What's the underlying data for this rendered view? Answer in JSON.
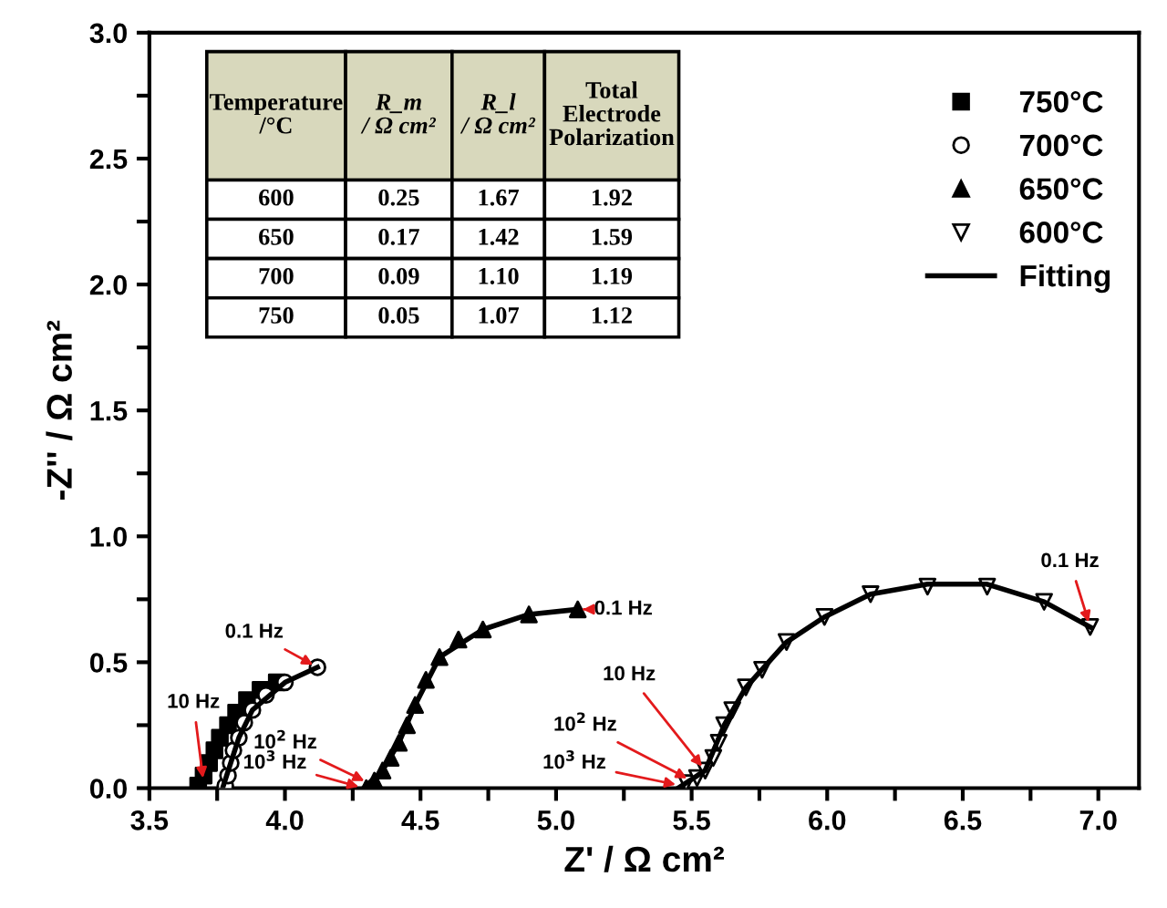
{
  "chart_data": {
    "type": "scatter",
    "xlabel": "Z' / Ω cm²",
    "ylabel": "-Z'' / Ω cm²",
    "xlim": [
      3.5,
      7.15
    ],
    "ylim": [
      0,
      3.0
    ],
    "xticks": [
      3.5,
      {
        "value": 3.75,
        "label": null
      },
      {
        "value": 4,
        "label": "4.0"
      },
      {
        "value": 4.25,
        "label": null
      },
      4.5,
      {
        "value": 4.75,
        "label": null
      },
      {
        "value": 5,
        "label": "5.0"
      },
      {
        "value": 5.25,
        "label": null
      },
      5.5,
      {
        "value": 5.75,
        "label": null
      },
      {
        "value": 6,
        "label": "6.0"
      },
      {
        "value": 6.25,
        "label": null
      },
      6.5,
      {
        "value": 6.75,
        "label": null
      },
      {
        "value": 7,
        "label": "7.0"
      }
    ],
    "yticks": [
      {
        "value": 0,
        "label": "0.0"
      },
      {
        "value": 0.25,
        "label": null
      },
      0.5,
      {
        "value": 0.75,
        "label": null
      },
      {
        "value": 1,
        "label": "1.0"
      },
      {
        "value": 1.25,
        "label": null
      },
      1.5,
      {
        "value": 1.75,
        "label": null
      },
      {
        "value": 2,
        "label": "2.0"
      },
      {
        "value": 2.25,
        "label": null
      },
      2.5,
      {
        "value": 2.75,
        "label": null
      },
      {
        "value": 3,
        "label": "3.0"
      }
    ],
    "grid": false,
    "legend": "top right",
    "series": [
      {
        "name": "750°C",
        "marker": "square",
        "color": "#000000",
        "x": [
          3.68,
          3.7,
          3.72,
          3.74,
          3.76,
          3.79,
          3.82,
          3.86,
          3.91,
          3.97
        ],
        "values": [
          0.01,
          0.05,
          0.1,
          0.15,
          0.2,
          0.25,
          0.3,
          0.35,
          0.39,
          0.42
        ]
      },
      {
        "name": "700°C",
        "marker": "circle_open",
        "color": "#000000",
        "x": [
          3.78,
          3.79,
          3.8,
          3.81,
          3.83,
          3.85,
          3.88,
          3.93,
          4.0,
          4.12
        ],
        "values": [
          0.01,
          0.05,
          0.1,
          0.15,
          0.2,
          0.26,
          0.31,
          0.37,
          0.42,
          0.48
        ]
      },
      {
        "name": "650°C",
        "marker": "triangle",
        "color": "#000000",
        "x": [
          4.3,
          4.33,
          4.36,
          4.39,
          4.42,
          4.45,
          4.48,
          4.52,
          4.57,
          4.64,
          4.73,
          4.9,
          5.08
        ],
        "values": [
          0.0,
          0.03,
          0.07,
          0.12,
          0.18,
          0.25,
          0.33,
          0.43,
          0.52,
          0.59,
          0.63,
          0.69,
          0.71
        ]
      },
      {
        "name": "600°C",
        "marker": "triangle_down_open",
        "color": "#000000",
        "x": [
          5.48,
          5.52,
          5.55,
          5.58,
          5.6,
          5.62,
          5.65,
          5.7,
          5.76,
          5.85,
          5.99,
          6.16,
          6.37,
          6.59,
          6.8,
          6.97
        ],
        "values": [
          0.02,
          0.04,
          0.07,
          0.12,
          0.18,
          0.25,
          0.31,
          0.4,
          0.47,
          0.58,
          0.68,
          0.77,
          0.8,
          0.8,
          0.74,
          0.64
        ]
      },
      {
        "name": "Fitting",
        "type": "line",
        "color": "#000000",
        "x": [
          5.45,
          5.55,
          5.62,
          5.7,
          5.85,
          5.99,
          6.16,
          6.37,
          6.59,
          6.8,
          6.97
        ],
        "values": [
          0.0,
          0.07,
          0.25,
          0.4,
          0.58,
          0.68,
          0.77,
          0.81,
          0.81,
          0.74,
          0.64
        ]
      },
      {
        "type": "line",
        "color": "#000000",
        "x": [
          3.77,
          3.8,
          3.83,
          3.88,
          4.0,
          4.12
        ],
        "values": [
          0.0,
          0.1,
          0.2,
          0.31,
          0.42,
          0.48
        ]
      },
      {
        "type": "line",
        "color": "#000000",
        "x": [
          4.29,
          4.36,
          4.42,
          4.48,
          4.57,
          4.73,
          4.9,
          5.08
        ],
        "values": [
          0.0,
          0.07,
          0.18,
          0.33,
          0.52,
          0.63,
          0.69,
          0.71
        ]
      }
    ],
    "annotations": [
      "Temperature\n/°C",
      "R_m\n/ Ω cm²",
      "R_l\n/ Ω cm²",
      "Total\nElectrode\nPolarization",
      "600",
      "0.25",
      "1.67",
      "1.92",
      "650",
      "0.17",
      "1.42",
      "1.59",
      "700",
      "0.09",
      "1.10",
      "1.19",
      "750",
      "0.05",
      "1.07",
      "1.12",
      {
        "text": "0.1 Hz",
        "x": 4.12,
        "y": 0.48
      },
      {
        "text": "10 Hz",
        "x": 3.7,
        "y": 0.02
      },
      {
        "text": "10$^{2}$ Hz",
        "x": 4.31,
        "y": 0.02
      },
      {
        "text": "10$^{3}$ Hz",
        "x": 4.29,
        "y": 0.0
      },
      {
        "text": "0.1 Hz",
        "x": 5.08,
        "y": 0.71
      },
      {
        "text": "10 Hz",
        "x": 5.55,
        "y": 0.07
      },
      {
        "text": "10$^{2}$ Hz",
        "x": 5.5,
        "y": 0.03
      },
      {
        "text": "10$^{3}$ Hz",
        "x": 5.46,
        "y": 0.01
      },
      {
        "text": "0.1 Hz",
        "x": 6.97,
        "y": 0.64
      }
    ]
  }
}
